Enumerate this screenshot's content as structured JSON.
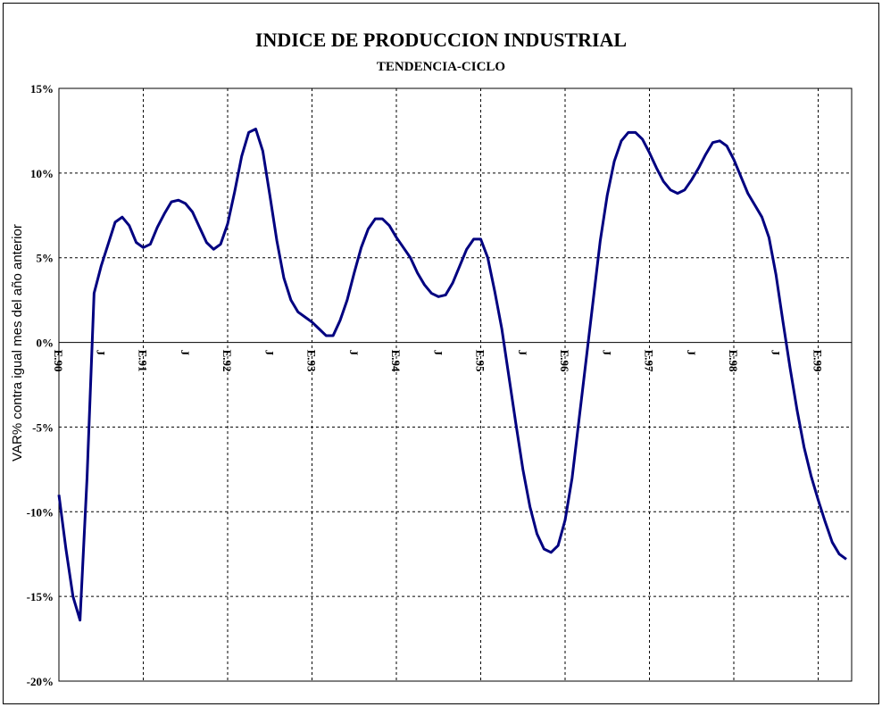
{
  "chart_data": {
    "type": "line",
    "title": "INDICE DE PRODUCCION INDUSTRIAL",
    "subtitle": "TENDENCIA-CICLO",
    "y_label": "VAR% contra igual mes del año anterior",
    "categories": [
      "E.90",
      null,
      null,
      null,
      null,
      null,
      "J",
      null,
      null,
      null,
      null,
      null,
      "E.91",
      null,
      null,
      null,
      null,
      null,
      "J",
      null,
      null,
      null,
      null,
      null,
      "E.92",
      null,
      null,
      null,
      null,
      null,
      "J",
      null,
      null,
      null,
      null,
      null,
      "E.93",
      null,
      null,
      null,
      null,
      null,
      "J",
      null,
      null,
      null,
      null,
      null,
      "E.94",
      null,
      null,
      null,
      null,
      null,
      "J",
      null,
      null,
      null,
      null,
      null,
      "E.95",
      null,
      null,
      null,
      null,
      null,
      "J",
      null,
      null,
      null,
      null,
      null,
      "E.96",
      null,
      null,
      null,
      null,
      null,
      "J",
      null,
      null,
      null,
      null,
      null,
      "E.97",
      null,
      null,
      null,
      null,
      null,
      "J",
      null,
      null,
      null,
      null,
      null,
      "E.98",
      null,
      null,
      null,
      null,
      null,
      "J",
      null,
      null,
      null,
      null,
      null,
      "E.99",
      null,
      null,
      null,
      null
    ],
    "series": [
      {
        "name": "Tendencia-ciclo",
        "color": "#000080",
        "values": [
          -9,
          -12.2,
          -15,
          -16.4,
          -8,
          2.9,
          4.5,
          5.8,
          7.1,
          7.4,
          6.9,
          5.9,
          5.6,
          5.8,
          6.8,
          7.6,
          8.3,
          8.4,
          8.2,
          7.7,
          6.8,
          5.9,
          5.5,
          5.8,
          7,
          8.9,
          11,
          12.4,
          12.6,
          11.3,
          8.7,
          6,
          3.8,
          2.5,
          1.8,
          1.5,
          1.2,
          0.8,
          0.4,
          0.4,
          1.3,
          2.5,
          4.1,
          5.6,
          6.7,
          7.3,
          7.3,
          6.9,
          6.2,
          5.6,
          5,
          4.1,
          3.4,
          2.9,
          2.7,
          2.8,
          3.5,
          4.5,
          5.5,
          6.1,
          6.1,
          5,
          3,
          0.8,
          -2,
          -4.8,
          -7.5,
          -9.7,
          -11.3,
          -12.2,
          -12.4,
          -12,
          -10.5,
          -8,
          -4.5,
          -1,
          2.5,
          6,
          8.7,
          10.7,
          11.9,
          12.4,
          12.4,
          12,
          11.2,
          10.3,
          9.5,
          9,
          8.8,
          9,
          9.6,
          10.3,
          11.1,
          11.8,
          11.9,
          11.6,
          10.8,
          9.8,
          8.8,
          8.1,
          7.4,
          6.2,
          4,
          1.2,
          -1.5,
          -4,
          -6.2,
          -7.9,
          -9.3,
          -10.6,
          -11.8,
          -12.5,
          -12.8
        ]
      }
    ],
    "ylim": [
      -20,
      15
    ],
    "yticks": [
      {
        "value": -20,
        "label": "-20%"
      },
      {
        "value": -15,
        "label": "-15%"
      },
      {
        "value": -10,
        "label": "-10%"
      },
      {
        "value": -5,
        "label": "-5%"
      },
      {
        "value": 0,
        "label": "0%"
      },
      {
        "value": 5,
        "label": "5%"
      },
      {
        "value": 10,
        "label": "10%"
      },
      {
        "value": 15,
        "label": "15%"
      }
    ],
    "grid": true
  }
}
